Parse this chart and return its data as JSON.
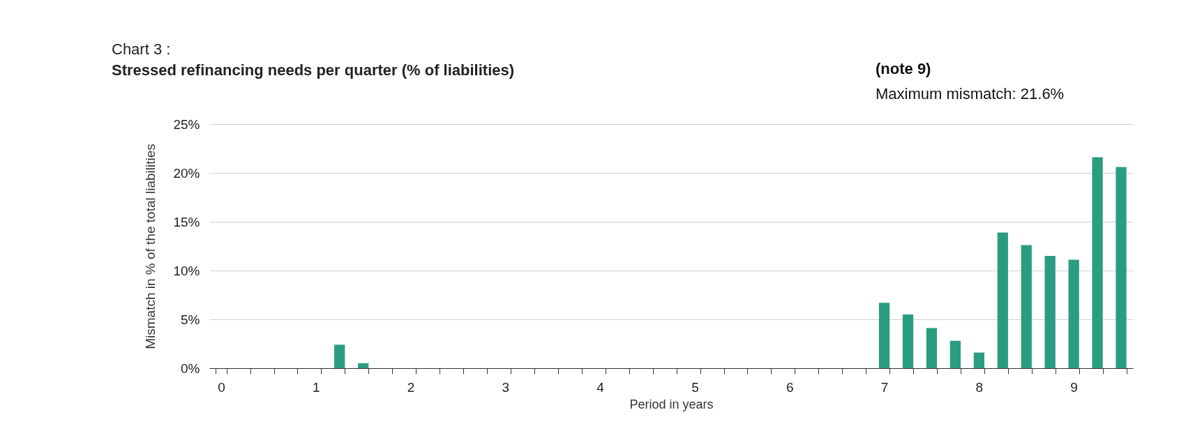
{
  "chart_data": {
    "type": "bar",
    "title": "Chart 3 :",
    "subtitle": "Stressed refinancing needs per quarter  (% of liabilities)",
    "xlabel": "Period in years",
    "ylabel": "Mismatch in % of the total liabilities",
    "annotations": [
      "(note 9)",
      "Maximum mismatch: 21.6%"
    ],
    "categories": [
      "0",
      null,
      null,
      null,
      "1",
      null,
      null,
      null,
      "2",
      null,
      null,
      null,
      "3",
      null,
      null,
      null,
      "4",
      null,
      null,
      null,
      "5",
      null,
      null,
      null,
      "6",
      null,
      null,
      null,
      "7",
      null,
      null,
      null,
      "8",
      null,
      null,
      null,
      "9",
      null,
      null
    ],
    "values": [
      0,
      0,
      0,
      0,
      0,
      2.4,
      0.5,
      0,
      0,
      0,
      0,
      0,
      0,
      0,
      0,
      0,
      0,
      0,
      0,
      0,
      0,
      0,
      0,
      0,
      0,
      0,
      0,
      0,
      6.7,
      5.5,
      4.1,
      2.8,
      1.6,
      13.9,
      12.6,
      11.5,
      11.1,
      21.6,
      20.6
    ],
    "color": "#2a9d80",
    "ylim": [
      0,
      25
    ],
    "yticks": [
      {
        "value": 0,
        "label": "0%"
      },
      {
        "value": 5,
        "label": "5%"
      },
      {
        "value": 10,
        "label": "10%"
      },
      {
        "value": 15,
        "label": "15%"
      },
      {
        "value": 20,
        "label": "20%"
      },
      {
        "value": 25,
        "label": "25%"
      }
    ],
    "grid": "y"
  }
}
